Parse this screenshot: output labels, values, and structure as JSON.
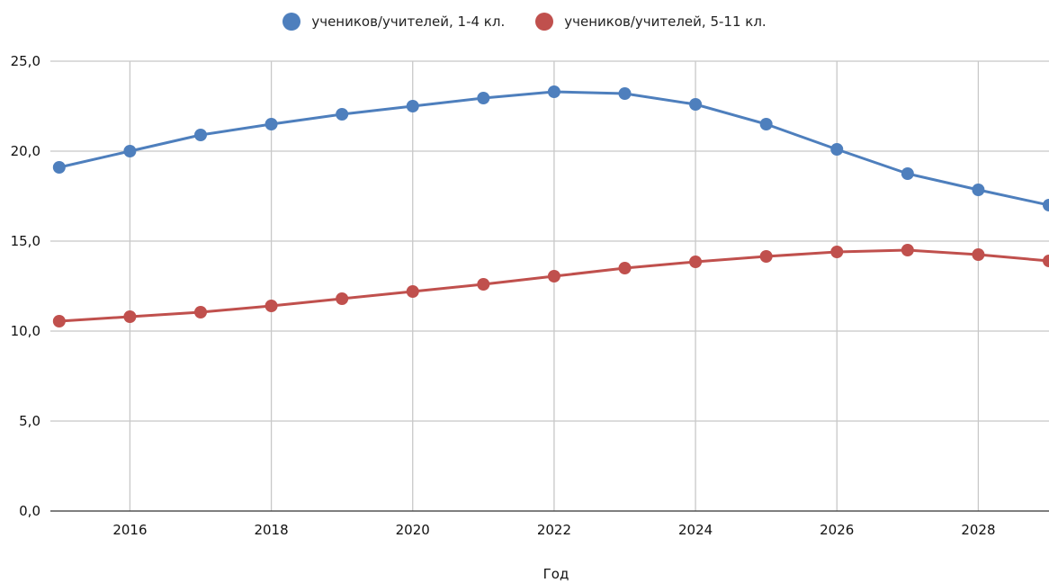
{
  "chart_data": {
    "type": "line",
    "title": "",
    "xlabel": "Год",
    "ylabel": "",
    "xlim": [
      2014.875,
      2029
    ],
    "ylim": [
      0,
      25
    ],
    "yticks": [
      0,
      5,
      10,
      15,
      20,
      25
    ],
    "ytick_labels": [
      "0,0",
      "5,0",
      "10,0",
      "15,0",
      "20,0",
      "25,0"
    ],
    "xticks": [
      2016,
      2018,
      2020,
      2022,
      2024,
      2026,
      2028
    ],
    "xtick_labels": [
      "2016",
      "2018",
      "2020",
      "2022",
      "2024",
      "2026",
      "2028"
    ],
    "grid": true,
    "legend_position": "top",
    "x": [
      2015,
      2016,
      2017,
      2018,
      2019,
      2020,
      2021,
      2022,
      2023,
      2024,
      2025,
      2026,
      2027,
      2028,
      2029
    ],
    "series": [
      {
        "name": "учеников/учителей, 1-4 кл.",
        "color": "#4e7fbd",
        "values": [
          19.1,
          20.0,
          20.9,
          21.5,
          22.05,
          22.5,
          22.95,
          23.3,
          23.2,
          22.6,
          21.5,
          20.1,
          18.75,
          17.85,
          17.0
        ]
      },
      {
        "name": "учеников/учителей, 5-11 кл.",
        "color": "#c0504d",
        "values": [
          10.55,
          10.8,
          11.05,
          11.4,
          11.8,
          12.2,
          12.6,
          13.05,
          13.5,
          13.85,
          14.15,
          14.4,
          14.5,
          14.25,
          13.9
        ]
      }
    ]
  }
}
